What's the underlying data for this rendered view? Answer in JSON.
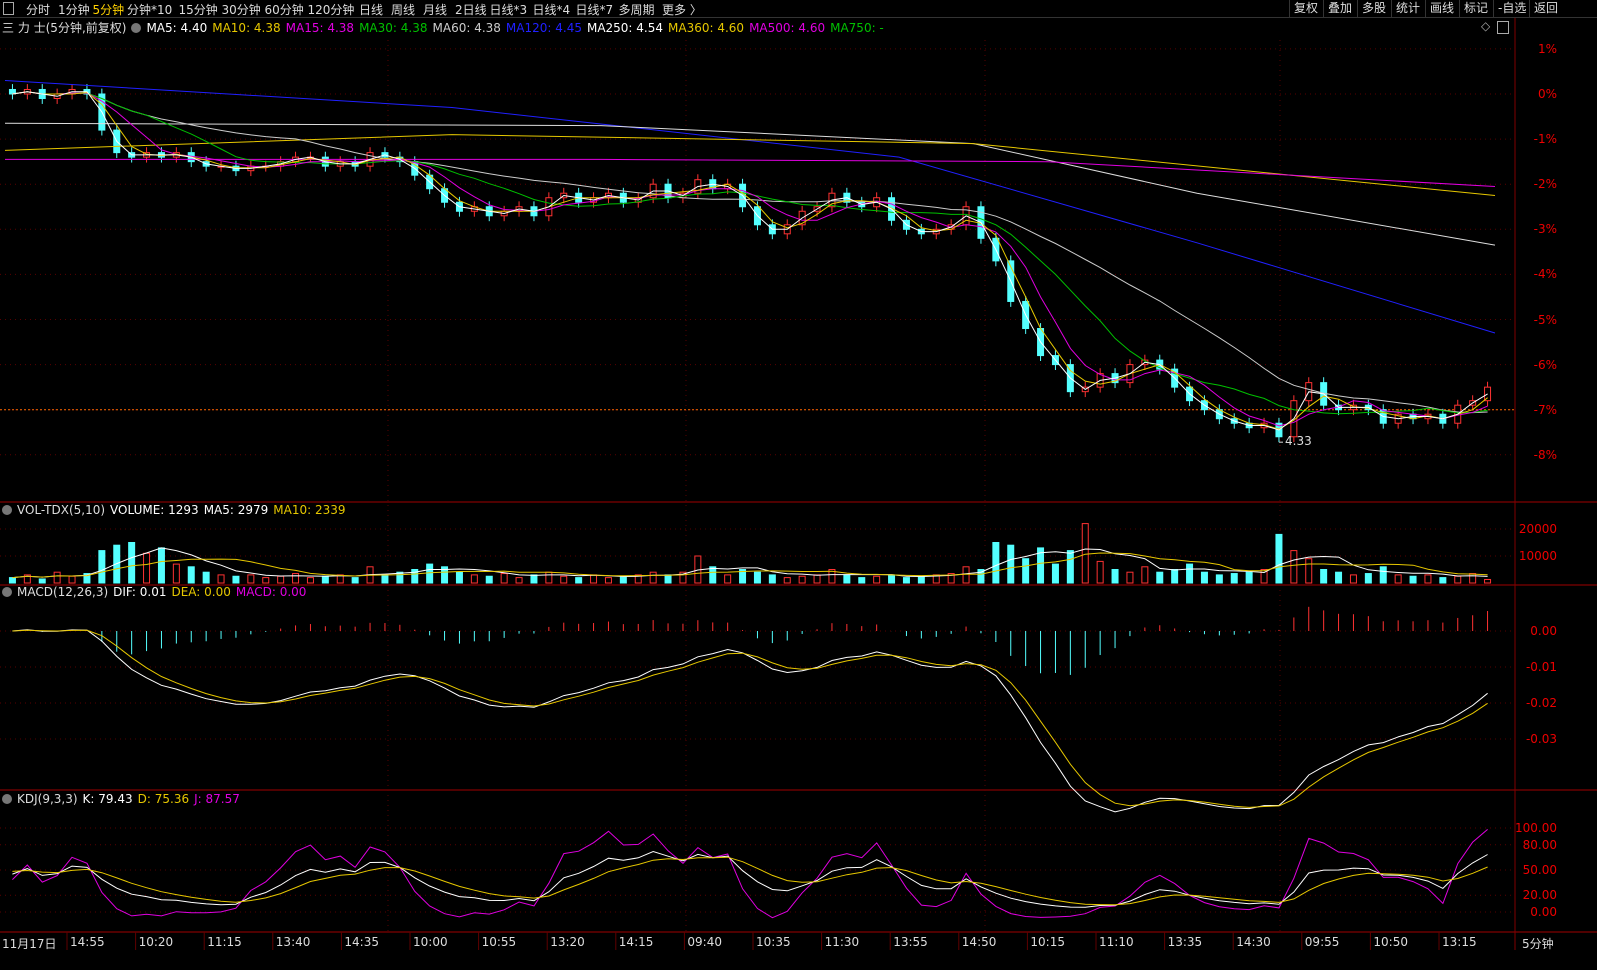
{
  "toolbar": {
    "periods": [
      "分时",
      "1分钟",
      "5分钟",
      "分钟*10",
      "15分钟",
      "30分钟",
      "60分钟",
      "120分钟",
      "日线",
      "周线",
      "月线",
      "2日线",
      "日线*3",
      "日线*4",
      "日线*7",
      "多周期",
      "更多 〉"
    ],
    "active_period": "5分钟",
    "right_buttons": [
      "复权",
      "叠加",
      "多股",
      "统计",
      "画线",
      "标记",
      "-自选",
      "返回"
    ]
  },
  "main_legend": {
    "title": "三 力 士(5分钟,前复权)",
    "items": [
      {
        "label": "MA5: 4.40",
        "color": "#ffffff"
      },
      {
        "label": "MA10: 4.38",
        "color": "#e6c700"
      },
      {
        "label": "MA15: 4.38",
        "color": "#e000e0"
      },
      {
        "label": "MA30: 4.38",
        "color": "#00c000"
      },
      {
        "label": "MA60: 4.38",
        "color": "#cccccc"
      },
      {
        "label": "MA120: 4.45",
        "color": "#2020ff"
      },
      {
        "label": "MA250: 4.54",
        "color": "#ffffff"
      },
      {
        "label": "MA360: 4.60",
        "color": "#e6c700"
      },
      {
        "label": "MA500: 4.60",
        "color": "#e000e0"
      },
      {
        "label": "MA750: -",
        "color": "#00c000"
      }
    ]
  },
  "vol_legend": {
    "title": "VOL-TDX(5,10)",
    "items": [
      {
        "label": "VOLUME: 1293",
        "color": "#ffffff"
      },
      {
        "label": "MA5: 2979",
        "color": "#ffffff"
      },
      {
        "label": "MA10: 2339",
        "color": "#e6c700"
      }
    ]
  },
  "macd_legend": {
    "title": "MACD(12,26,3)",
    "items": [
      {
        "label": "DIF: 0.01",
        "color": "#ffffff"
      },
      {
        "label": "DEA: 0.00",
        "color": "#e6c700"
      },
      {
        "label": "MACD: 0.00",
        "color": "#e000e0"
      }
    ]
  },
  "kdj_legend": {
    "title": "KDJ(9,3,3)",
    "items": [
      {
        "label": "K: 79.43",
        "color": "#ffffff"
      },
      {
        "label": "D: 75.36",
        "color": "#e6c700"
      },
      {
        "label": "J: 87.57",
        "color": "#e000e0"
      }
    ]
  },
  "low_label": "4.33",
  "period_label": "5分钟",
  "colors": {
    "up": "#ff3232",
    "down": "#54ffff",
    "axis": "#e00000",
    "grid": "#5a0000"
  },
  "chart_data": [
    {
      "type": "candlestick",
      "name": "price",
      "yunit": "%",
      "yticks": [
        "1%",
        "0%",
        "-1%",
        "-2%",
        "-3%",
        "-4%",
        "-5%",
        "-6%",
        "-7%",
        "-8%"
      ],
      "ylim": [
        -9,
        1.5
      ],
      "reference_line_pct": -7,
      "closes_pct": [
        0.0,
        0.1,
        -0.1,
        0.0,
        0.1,
        0.0,
        -0.8,
        -1.3,
        -1.4,
        -1.3,
        -1.4,
        -1.3,
        -1.5,
        -1.6,
        -1.6,
        -1.7,
        -1.6,
        -1.6,
        -1.5,
        -1.4,
        -1.4,
        -1.6,
        -1.5,
        -1.6,
        -1.3,
        -1.4,
        -1.5,
        -1.8,
        -2.1,
        -2.4,
        -2.6,
        -2.5,
        -2.7,
        -2.6,
        -2.5,
        -2.7,
        -2.3,
        -2.2,
        -2.4,
        -2.3,
        -2.2,
        -2.4,
        -2.3,
        -2.0,
        -2.3,
        -2.2,
        -1.9,
        -2.1,
        -2.0,
        -2.5,
        -2.9,
        -3.1,
        -2.9,
        -2.6,
        -2.5,
        -2.2,
        -2.4,
        -2.5,
        -2.3,
        -2.8,
        -3.0,
        -3.1,
        -3.0,
        -2.9,
        -2.5,
        -3.2,
        -3.7,
        -4.6,
        -5.2,
        -5.8,
        -6.0,
        -6.6,
        -6.5,
        -6.2,
        -6.4,
        -6.0,
        -5.9,
        -6.1,
        -6.5,
        -6.8,
        -7.0,
        -7.2,
        -7.3,
        -7.4,
        -7.3,
        -7.6,
        -6.8,
        -6.4,
        -6.9,
        -7.0,
        -6.9,
        -7.0,
        -7.3,
        -7.1,
        -7.2,
        -7.1,
        -7.3,
        -6.9,
        -6.8,
        -6.5
      ],
      "long_ma_pct": [
        {
          "name": "MA120",
          "color": "#2020ff",
          "points": [
            [
              0,
              0.3
            ],
            [
              30,
              -0.3
            ],
            [
              60,
              -1.4
            ],
            [
              80,
              -3.3
            ],
            [
              100,
              -5.3
            ]
          ]
        },
        {
          "name": "MA250",
          "color": "#dddddd",
          "points": [
            [
              0,
              -0.65
            ],
            [
              40,
              -0.7
            ],
            [
              65,
              -1.1
            ],
            [
              80,
              -2.2
            ],
            [
              100,
              -3.35
            ]
          ]
        },
        {
          "name": "MA360",
          "color": "#e6c700",
          "points": [
            [
              0,
              -1.25
            ],
            [
              30,
              -0.9
            ],
            [
              65,
              -1.1
            ],
            [
              100,
              -2.25
            ]
          ]
        },
        {
          "name": "MA500",
          "color": "#e000e0",
          "points": [
            [
              0,
              -1.45
            ],
            [
              40,
              -1.45
            ],
            [
              70,
              -1.5
            ],
            [
              100,
              -2.05
            ]
          ]
        }
      ]
    },
    {
      "type": "bar",
      "name": "volume",
      "yticks": [
        20000,
        10000
      ],
      "values": [
        2000,
        3000,
        1500,
        4000,
        2500,
        3500,
        12000,
        14000,
        15000,
        11000,
        13000,
        7000,
        6000,
        4000,
        3000,
        2500,
        3000,
        2000,
        2500,
        3500,
        2000,
        2500,
        3000,
        2000,
        6000,
        3000,
        4000,
        5000,
        7000,
        6000,
        4000,
        3000,
        2500,
        3500,
        2000,
        3000,
        4000,
        2500,
        2000,
        3000,
        2000,
        2500,
        3000,
        4000,
        3000,
        4000,
        10000,
        6000,
        3000,
        5000,
        4000,
        3000,
        2000,
        2500,
        3000,
        5000,
        3000,
        2000,
        2500,
        3000,
        2000,
        2500,
        3000,
        3500,
        6000,
        5000,
        15000,
        14000,
        9000,
        13000,
        7000,
        12000,
        22000,
        8000,
        5000,
        4000,
        6000,
        4000,
        5000,
        7000,
        4000,
        3000,
        3500,
        4000,
        5000,
        18000,
        12000,
        9000,
        5000,
        4000,
        3000,
        3500,
        6000,
        3000,
        2500,
        3000,
        2000,
        2500,
        3500,
        1300
      ]
    },
    {
      "type": "line",
      "name": "macd",
      "yticks": [
        "0.00",
        "-0.01",
        "-0.02",
        "-0.03"
      ]
    },
    {
      "type": "line",
      "name": "kdj",
      "yticks": [
        "100.00",
        "80.00",
        "50.00",
        "20.00",
        "0.00"
      ]
    }
  ],
  "x_axis": [
    "11月17日",
    "14:55",
    "10:20",
    "11:15",
    "13:40",
    "14:35",
    "10:00",
    "10:55",
    "13:20",
    "14:15",
    "09:40",
    "10:35",
    "11:30",
    "13:55",
    "14:50",
    "10:15",
    "11:10",
    "13:35",
    "14:30",
    "09:55",
    "10:50",
    "13:15"
  ]
}
